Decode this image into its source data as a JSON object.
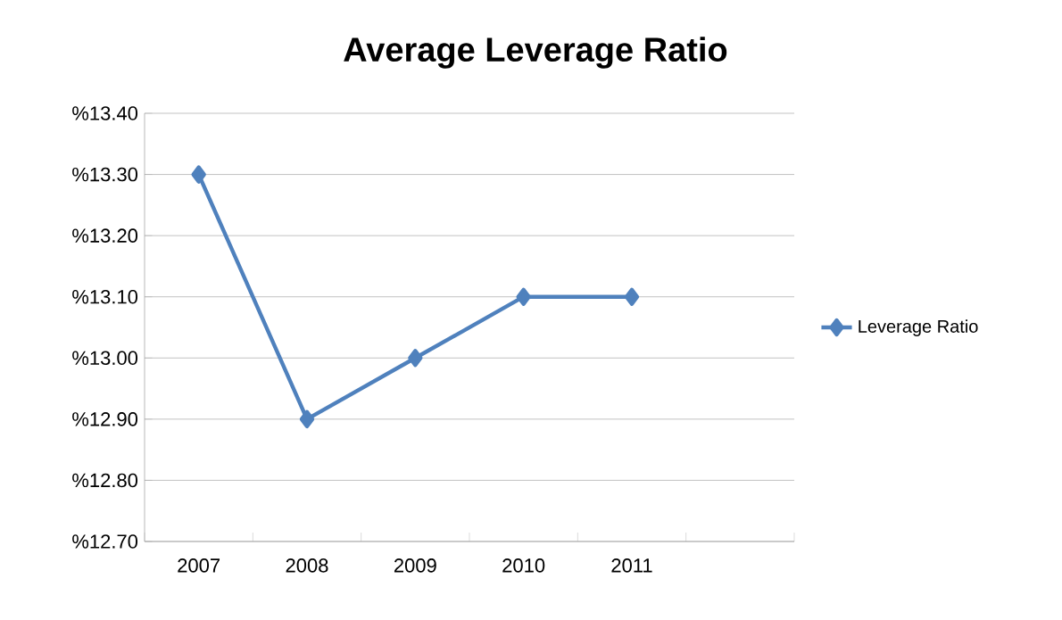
{
  "chart_data": {
    "type": "line",
    "title": "Average Leverage Ratio",
    "categories": [
      "2007",
      "2008",
      "2009",
      "2010",
      "2011",
      null
    ],
    "series": [
      {
        "name": "Leverage Ratio",
        "color": "#4f81bd",
        "values": [
          13.3,
          12.9,
          13.0,
          13.1,
          13.1,
          null
        ]
      }
    ],
    "ylim": [
      12.7,
      13.4
    ],
    "yticks": [
      {
        "value": 12.7,
        "label": "%12.70"
      },
      {
        "value": 12.8,
        "label": "%12.80"
      },
      {
        "value": 12.9,
        "label": "%12.90"
      },
      {
        "value": 13.0,
        "label": "%13.00"
      },
      {
        "value": 13.1,
        "label": "%13.10"
      },
      {
        "value": 13.2,
        "label": "%13.20"
      },
      {
        "value": 13.3,
        "label": "%13.30"
      },
      {
        "value": 13.4,
        "label": "%13.40"
      }
    ],
    "grid": "y",
    "legend": "right",
    "marker": "diamond",
    "line_style": "solid"
  }
}
